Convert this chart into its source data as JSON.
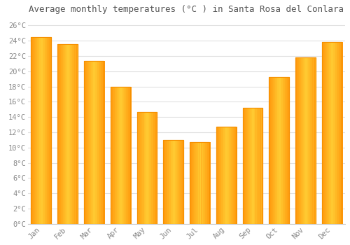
{
  "months": [
    "Jan",
    "Feb",
    "Mar",
    "Apr",
    "May",
    "Jun",
    "Jul",
    "Aug",
    "Sep",
    "Oct",
    "Nov",
    "Dec"
  ],
  "temperatures": [
    24.5,
    23.5,
    21.3,
    18.0,
    14.7,
    11.0,
    10.7,
    12.7,
    15.2,
    19.2,
    21.8,
    23.8
  ],
  "bar_color_center": "#FFB900",
  "bar_color_edge": "#FF8C00",
  "title": "Average monthly temperatures (°C ) in Santa Rosa del Conlara",
  "ylim": [
    0,
    27
  ],
  "yticks": [
    0,
    2,
    4,
    6,
    8,
    10,
    12,
    14,
    16,
    18,
    20,
    22,
    24,
    26
  ],
  "ytick_labels": [
    "0°C",
    "2°C",
    "4°C",
    "6°C",
    "8°C",
    "10°C",
    "12°C",
    "14°C",
    "16°C",
    "18°C",
    "20°C",
    "22°C",
    "24°C",
    "26°C"
  ],
  "background_color": "#ffffff",
  "grid_color": "#e0e0e0",
  "title_fontsize": 9,
  "tick_fontsize": 7.5,
  "bar_width": 0.75
}
